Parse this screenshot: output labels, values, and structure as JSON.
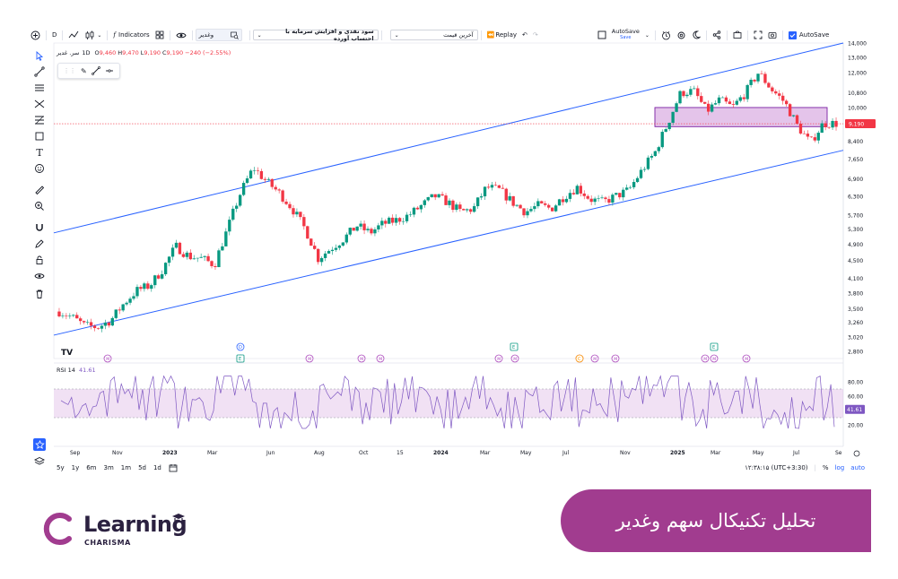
{
  "toolbar": {
    "interval": "D",
    "indicators_label": "Indicators",
    "symbol_search": "وغدیر",
    "layout_select": "سود نقدی و افزایش سرمایه با احتساب آورده",
    "price_select": "آخرین قیمت",
    "replay_label": "Replay",
    "autosave_label": "AutoSave",
    "autosave_sub": "Save",
    "autosave_check_label": "AutoSave"
  },
  "legend": {
    "symbol": "سر. غدیر",
    "interval": "1D",
    "open": "9,460",
    "high": "9,470",
    "low": "9,190",
    "close": "9,190",
    "change": "−240 (−2.55%)",
    "rsi_label": "RSI 14",
    "rsi_value": "41.61"
  },
  "chart_data": {
    "type": "candlestick",
    "price_axis_labels": [
      "14,000",
      "13,000",
      "12,000",
      "10,800",
      "10,000",
      "9,190",
      "8,400",
      "7,650",
      "6,900",
      "6,300",
      "5,700",
      "5,300",
      "4,900",
      "4,500",
      "4,100",
      "3,800",
      "3,500",
      "3,260",
      "3,020",
      "2,800"
    ],
    "last_price_label": "9,190",
    "rsi_axis_labels": [
      "80.00",
      "60.00",
      "41.61",
      "20.00"
    ],
    "time_axis_labels": [
      "Sep",
      "Nov",
      "2023",
      "Mar",
      "Jun",
      "Aug",
      "Oct",
      "15",
      "2024",
      "Mar",
      "May",
      "Jul",
      "Nov",
      "2025",
      "Mar",
      "May",
      "Jul",
      "Se"
    ],
    "price_path": [
      3.45,
      3.35,
      3.2,
      3.18,
      3.3,
      3.6,
      3.85,
      3.95,
      4.3,
      4.85,
      4.6,
      4.55,
      4.4,
      5.3,
      6.4,
      7.3,
      6.8,
      6.4,
      5.9,
      5.3,
      4.55,
      4.8,
      5.05,
      5.4,
      5.2,
      5.45,
      5.55,
      5.7,
      6.0,
      6.3,
      6.1,
      5.8,
      5.9,
      6.6,
      6.5,
      6.1,
      5.8,
      6.0,
      5.9,
      6.3,
      6.6,
      6.2,
      6.1,
      6.3,
      6.5,
      7.2,
      7.9,
      9.2,
      10.8,
      10.9,
      9.8,
      10.4,
      10.0,
      10.8,
      12.0,
      11.0,
      10.3,
      9.1,
      8.3,
      9.2,
      9.2
    ],
    "up_color": "#089981",
    "down_color": "#f23645",
    "channel_color": "#2962ff",
    "rsi_color": "#7e57c2",
    "zone_color": "#ce93d8",
    "rsi_band": [
      30,
      70
    ],
    "event_markers": [
      "D",
      "E",
      "E",
      "C",
      "E"
    ]
  },
  "bottom": {
    "ranges": [
      "5y",
      "1y",
      "6m",
      "3m",
      "1m",
      "5d",
      "1d"
    ],
    "clock": "۱۲:۳۸:۱۵ (UTC+3:30)",
    "percent": "%",
    "log": "log",
    "auto": "auto"
  },
  "branding": {
    "logo_word": "Learning",
    "logo_sub": "CHARISMA",
    "banner_text": "تحلیل تکنیکال سهم وغدیر",
    "banner_color": "#a13c8f"
  }
}
